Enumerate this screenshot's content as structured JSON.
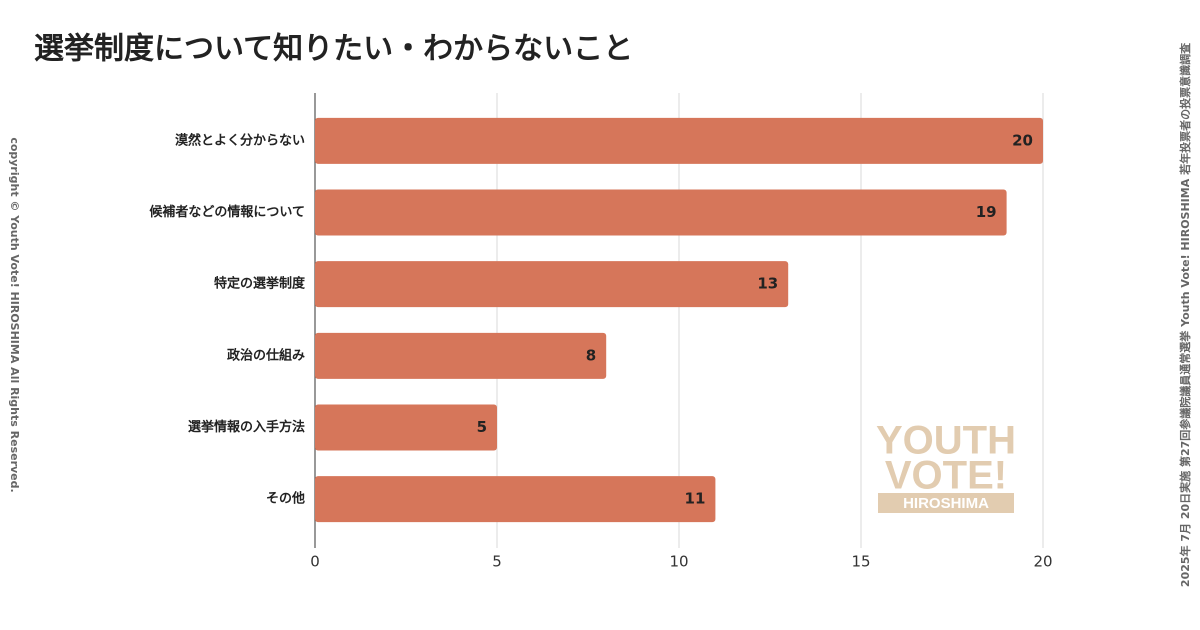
{
  "chart_data": {
    "type": "bar",
    "orientation": "horizontal",
    "title": "選挙制度について知りたい・わからないこと",
    "categories": [
      "漠然とよく分からない",
      "候補者などの情報について",
      "特定の選挙制度",
      "政治の仕組み",
      "選挙情報の入手方法",
      "その他"
    ],
    "values": [
      20,
      19,
      13,
      8,
      5,
      11
    ],
    "color": "#d6765a",
    "xlim": [
      0,
      20
    ],
    "xticks": [
      0,
      5,
      10,
      15,
      20
    ],
    "grid": true
  },
  "copyright": "copyright © Youth Vote! HIROSHIMA  All Rights Reserved.",
  "survey_note": "2025年 7月 20日実施 第27回参議院議員通常選挙  Youth Vote! HIROSHIMA 若年投票者の投票意識調査",
  "logo": {
    "line1": "YOUTH",
    "line2": "VOTE!",
    "line3": "HIROSHIMA"
  }
}
